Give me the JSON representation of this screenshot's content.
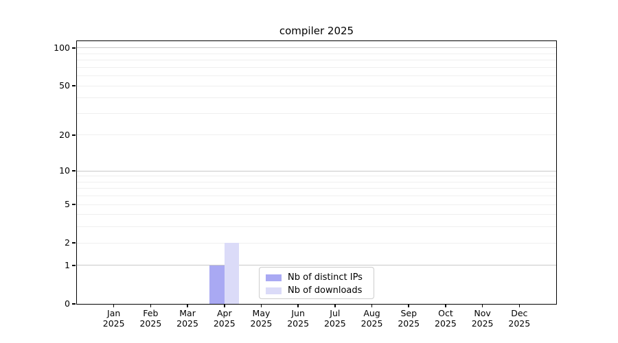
{
  "chart_data": {
    "type": "bar",
    "title": "compiler 2025",
    "categories": [
      "Jan 2025",
      "Feb 2025",
      "Mar 2025",
      "Apr 2025",
      "May 2025",
      "Jun 2025",
      "Jul 2025",
      "Aug 2025",
      "Sep 2025",
      "Oct 2025",
      "Nov 2025",
      "Dec 2025"
    ],
    "series": [
      {
        "name": "Nb of distinct IPs",
        "color": "#a9a9f3",
        "values": [
          0,
          0,
          0,
          1,
          0,
          0,
          0,
          0,
          0,
          0,
          0,
          0
        ]
      },
      {
        "name": "Nb of downloads",
        "color": "#dbdbf8",
        "values": [
          0,
          0,
          0,
          2,
          0,
          0,
          0,
          0,
          0,
          0,
          0,
          0
        ]
      }
    ],
    "y_scale": "log1p",
    "ylim": [
      0,
      113
    ],
    "y_ticks": [
      0,
      1,
      2,
      5,
      10,
      20,
      50,
      100
    ],
    "y_gridlines_major": [
      1,
      10,
      100
    ],
    "y_gridlines_minor": [
      2,
      3,
      4,
      5,
      6,
      7,
      8,
      9,
      20,
      30,
      40,
      50,
      60,
      70,
      80,
      90
    ],
    "grid": "horizontal",
    "legend_position": "lower center",
    "colors": {
      "spine": "#000000",
      "grid_major": "#c8c8c8",
      "grid_minor": "#efefef",
      "background": "#ffffff",
      "legend_border": "#cccccc"
    }
  }
}
